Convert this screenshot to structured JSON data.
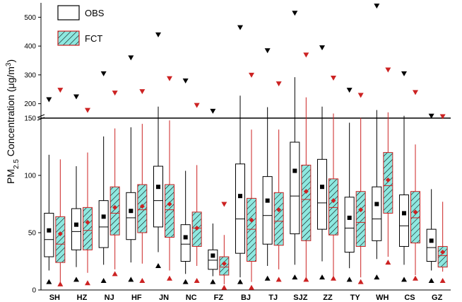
{
  "chart_data": {
    "type": "box",
    "ylabel_prefix": "PM",
    "ylabel_sub": "2.5",
    "ylabel_mid": " Concentration (μg/m",
    "ylabel_sup": "3",
    "ylabel_suffix": ")",
    "y_axis_break": 150,
    "ylim_lower": [
      0,
      150
    ],
    "ylim_upper": [
      150,
      550
    ],
    "yticks_lower": [
      0,
      50,
      100,
      150
    ],
    "yticks_upper": [
      200,
      300,
      400,
      500
    ],
    "categories": [
      "SH",
      "HZ",
      "NJ",
      "HF",
      "JN",
      "NC",
      "FZ",
      "BJ",
      "TJ",
      "SJZ",
      "ZZ",
      "TY",
      "WH",
      "CS",
      "GZ"
    ],
    "legend": [
      {
        "key": "obs",
        "label": "OBS"
      },
      {
        "key": "fct",
        "label": "FCT"
      }
    ],
    "colors": {
      "obs_box": "#ffffff",
      "obs_edge": "#000000",
      "fct_fill": "#8ee8e0",
      "fct_edge": "#cc2222",
      "mean_obs": "#000000",
      "mean_fct": "#cc2222"
    },
    "series": [
      {
        "key": "obs",
        "values": [
          {
            "whisker_low": 17,
            "q1": 29,
            "median": 44,
            "q3": 67,
            "whisker_high": 118,
            "mean": 52,
            "min": 7,
            "max": 215
          },
          {
            "whisker_low": 20,
            "q1": 35,
            "median": 51,
            "q3": 71,
            "whisker_high": 108,
            "mean": 57,
            "min": 9,
            "max": 225
          },
          {
            "whisker_low": 22,
            "q1": 37,
            "median": 55,
            "q3": 78,
            "whisker_high": 134,
            "mean": 64,
            "min": 8,
            "max": 305
          },
          {
            "whisker_low": 24,
            "q1": 44,
            "median": 63,
            "q3": 85,
            "whisker_high": 142,
            "mean": 69,
            "min": 9,
            "max": 360
          },
          {
            "whisker_low": 33,
            "q1": 55,
            "median": 78,
            "q3": 108,
            "whisker_high": 190,
            "mean": 90,
            "min": 21,
            "max": 440
          },
          {
            "whisker_low": 14,
            "q1": 25,
            "median": 40,
            "q3": 57,
            "whisker_high": 104,
            "mean": 46,
            "min": 7,
            "max": 280
          },
          {
            "whisker_low": 12,
            "q1": 18,
            "median": 26,
            "q3": 35,
            "whisker_high": 58,
            "mean": 30,
            "min": 7,
            "max": 175
          },
          {
            "whisker_low": 11,
            "q1": 32,
            "median": 62,
            "q3": 110,
            "whisker_high": 228,
            "mean": 82,
            "min": 7,
            "max": 465
          },
          {
            "whisker_low": 21,
            "q1": 40,
            "median": 65,
            "q3": 99,
            "whisker_high": 188,
            "mean": 78,
            "min": 10,
            "max": 385
          },
          {
            "whisker_low": 22,
            "q1": 49,
            "median": 82,
            "q3": 129,
            "whisker_high": 292,
            "mean": 104,
            "min": 11,
            "max": 515
          },
          {
            "whisker_low": 25,
            "q1": 53,
            "median": 76,
            "q3": 114,
            "whisker_high": 190,
            "mean": 90,
            "min": 11,
            "max": 395
          },
          {
            "whisker_low": 19,
            "q1": 33,
            "median": 54,
            "q3": 81,
            "whisker_high": 146,
            "mean": 63,
            "min": 9,
            "max": 248
          },
          {
            "whisker_low": 27,
            "q1": 43,
            "median": 62,
            "q3": 90,
            "whisker_high": 178,
            "mean": 75,
            "min": 11,
            "max": 540
          },
          {
            "whisker_low": 22,
            "q1": 38,
            "median": 56,
            "q3": 83,
            "whisker_high": 158,
            "mean": 67,
            "min": 9,
            "max": 305
          },
          {
            "whisker_low": 17,
            "q1": 25,
            "median": 37,
            "q3": 53,
            "whisker_high": 88,
            "mean": 43,
            "min": 8,
            "max": 158
          }
        ]
      },
      {
        "key": "fct",
        "values": [
          {
            "whisker_low": 6,
            "q1": 24,
            "median": 40,
            "q3": 64,
            "whisker_high": 114,
            "mean": 49,
            "min": 5,
            "max": 248
          },
          {
            "whisker_low": 15,
            "q1": 35,
            "median": 52,
            "q3": 72,
            "whisker_high": 120,
            "mean": 59,
            "min": 6,
            "max": 178
          },
          {
            "whisker_low": 18,
            "q1": 48,
            "median": 67,
            "q3": 90,
            "whisker_high": 141,
            "mean": 72,
            "min": 14,
            "max": 238
          },
          {
            "whisker_low": 23,
            "q1": 50,
            "median": 70,
            "q3": 92,
            "whisker_high": 145,
            "mean": 73,
            "min": 8,
            "max": 243
          },
          {
            "whisker_low": 17,
            "q1": 46,
            "median": 70,
            "q3": 92,
            "whisker_high": 148,
            "mean": 75,
            "min": 10,
            "max": 288
          },
          {
            "whisker_low": 21,
            "q1": 38,
            "median": 54,
            "q3": 68,
            "whisker_high": 109,
            "mean": 54,
            "min": 8,
            "max": 195
          },
          {
            "whisker_low": 5,
            "q1": 13,
            "median": 20,
            "q3": 29,
            "whisker_high": 48,
            "mean": 23,
            "min": 2,
            "max": 75
          },
          {
            "whisker_low": 7,
            "q1": 25,
            "median": 53,
            "q3": 80,
            "whisker_high": 140,
            "mean": 61,
            "min": 2,
            "max": 300
          },
          {
            "whisker_low": 18,
            "q1": 39,
            "median": 60,
            "q3": 85,
            "whisker_high": 140,
            "mean": 70,
            "min": 9,
            "max": 270
          },
          {
            "whisker_low": 10,
            "q1": 43,
            "median": 79,
            "q3": 109,
            "whisker_high": 222,
            "mean": 86,
            "min": 9,
            "max": 370
          },
          {
            "whisker_low": 11,
            "q1": 48,
            "median": 72,
            "q3": 97,
            "whisker_high": 166,
            "mean": 78,
            "min": 10,
            "max": 290
          },
          {
            "whisker_low": 11,
            "q1": 38,
            "median": 59,
            "q3": 86,
            "whisker_high": 151,
            "mean": 70,
            "min": 7,
            "max": 230
          },
          {
            "whisker_low": 29,
            "q1": 67,
            "median": 91,
            "q3": 120,
            "whisker_high": 170,
            "mean": 96,
            "min": 24,
            "max": 318
          },
          {
            "whisker_low": 13,
            "q1": 41,
            "median": 63,
            "q3": 86,
            "whisker_high": 127,
            "mean": 68,
            "min": 10,
            "max": 240
          },
          {
            "whisker_low": 16,
            "q1": 20,
            "median": 30,
            "q3": 38,
            "whisker_high": 77,
            "mean": 33,
            "min": 8,
            "max": 156
          }
        ]
      }
    ]
  }
}
